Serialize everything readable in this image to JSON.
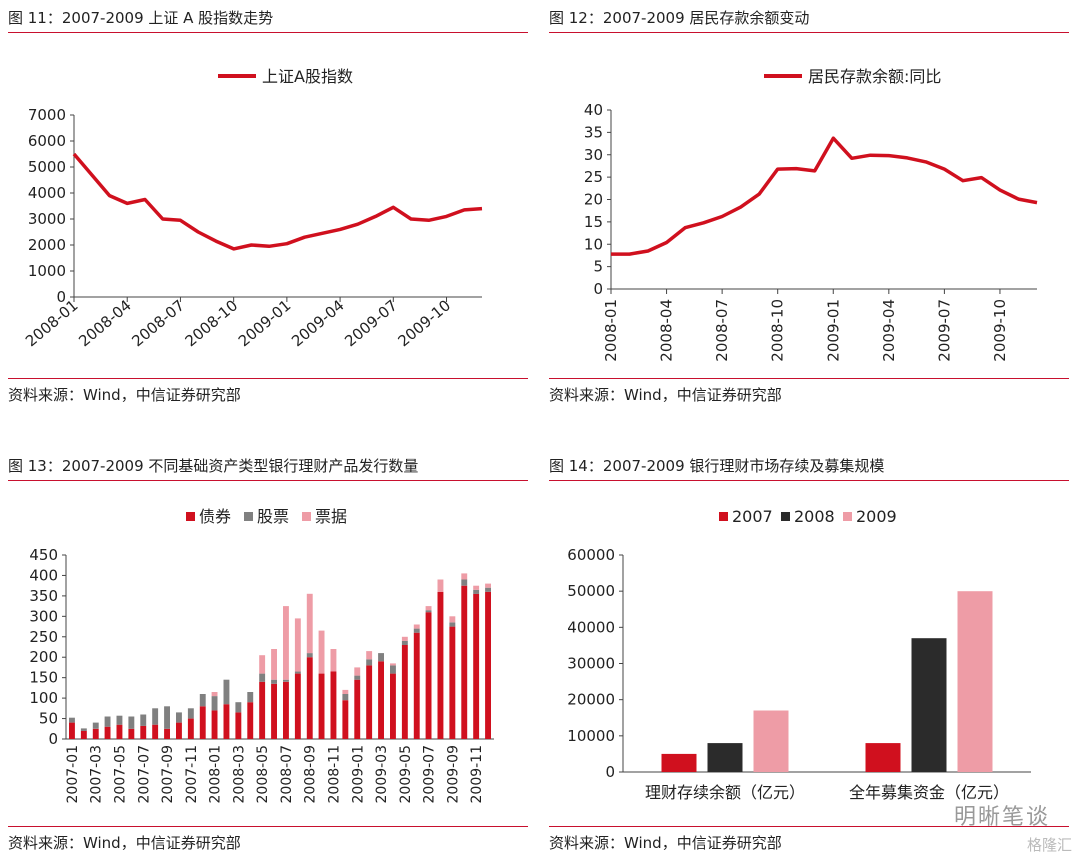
{
  "panels": [
    {
      "title": "图 11：2007-2009 上证 A 股指数走势",
      "source": "资料来源：Wind，中信证券研究部"
    },
    {
      "title": "图 12：2007-2009 居民存款余额变动",
      "source": "资料来源：Wind，中信证券研究部"
    },
    {
      "title": "图 13：2007-2009 不同基础资产类型银行理财产品发行数量",
      "source": "资料来源：Wind，中信证券研究部"
    },
    {
      "title": "图 14：2007-2009 银行理财市场存续及募集规模",
      "source": "资料来源：Wind，中信证券研究部"
    }
  ],
  "watermark": {
    "main": "明晰笔谈",
    "logo": "格隆汇"
  },
  "colors": {
    "red": "#d0101e",
    "dark": "#2b2b2b",
    "pink": "#ee9ca6",
    "gray": "#808080",
    "rule": "#c8102e"
  },
  "chart_data": [
    {
      "type": "line",
      "series": [
        {
          "name": "上证A股指数",
          "x": [
            "2008-01",
            "2008-02",
            "2008-03",
            "2008-04",
            "2008-05",
            "2008-06",
            "2008-07",
            "2008-08",
            "2008-09",
            "2008-10",
            "2008-11",
            "2008-12",
            "2009-01",
            "2009-02",
            "2009-03",
            "2009-04",
            "2009-05",
            "2009-06",
            "2009-07",
            "2009-08",
            "2009-09",
            "2009-10",
            "2009-11",
            "2009-12"
          ],
          "values": [
            5500,
            4700,
            3900,
            3600,
            3750,
            3000,
            2950,
            2500,
            2150,
            1850,
            2000,
            1950,
            2050,
            2300,
            2450,
            2600,
            2800,
            3100,
            3450,
            3000,
            2950,
            3100,
            3350,
            3400
          ]
        }
      ],
      "xticks": [
        "2008-01",
        "2008-04",
        "2008-07",
        "2008-10",
        "2009-01",
        "2009-04",
        "2009-07",
        "2009-10"
      ],
      "ylim": [
        0,
        7000
      ],
      "yticks": [
        0,
        1000,
        2000,
        3000,
        4000,
        5000,
        6000,
        7000
      ],
      "legend": "top"
    },
    {
      "type": "line",
      "series": [
        {
          "name": "居民存款余额:同比",
          "x": [
            "2008-01",
            "2008-02",
            "2008-03",
            "2008-04",
            "2008-05",
            "2008-06",
            "2008-07",
            "2008-08",
            "2008-09",
            "2008-10",
            "2008-11",
            "2008-12",
            "2009-01",
            "2009-02",
            "2009-03",
            "2009-04",
            "2009-05",
            "2009-06",
            "2009-07",
            "2009-08",
            "2009-09",
            "2009-10",
            "2009-11",
            "2009-12"
          ],
          "values": [
            7.8,
            7.8,
            8.5,
            10.4,
            13.7,
            14.8,
            16.2,
            18.3,
            21.2,
            26.8,
            26.9,
            26.4,
            33.7,
            29.2,
            29.9,
            29.8,
            29.3,
            28.4,
            26.8,
            24.2,
            24.9,
            22.1,
            20.1,
            19.3
          ]
        }
      ],
      "xticks": [
        "2008-01",
        "2008-04",
        "2008-07",
        "2008-10",
        "2009-01",
        "2009-04",
        "2009-07",
        "2009-10"
      ],
      "ylim": [
        0,
        40
      ],
      "yticks": [
        0,
        5,
        10,
        15,
        20,
        25,
        30,
        35,
        40
      ],
      "legend": "top"
    },
    {
      "type": "bar",
      "stacked": true,
      "categories": [
        "2007-01",
        "2007-02",
        "2007-03",
        "2007-04",
        "2007-05",
        "2007-06",
        "2007-07",
        "2007-08",
        "2007-09",
        "2007-10",
        "2007-11",
        "2007-12",
        "2008-01",
        "2008-02",
        "2008-03",
        "2008-04",
        "2008-05",
        "2008-06",
        "2008-07",
        "2008-08",
        "2008-09",
        "2008-10",
        "2008-11",
        "2008-12",
        "2009-01",
        "2009-02",
        "2009-03",
        "2009-04",
        "2009-05",
        "2009-06",
        "2009-07",
        "2009-08",
        "2009-09",
        "2009-10",
        "2009-11",
        "2009-12"
      ],
      "xticks": [
        "2007-01",
        "2007-03",
        "2007-05",
        "2007-07",
        "2007-09",
        "2007-11",
        "2008-01",
        "2008-03",
        "2008-05",
        "2008-07",
        "2008-09",
        "2008-11",
        "2009-01",
        "2009-03",
        "2009-05",
        "2009-07",
        "2009-09",
        "2009-11"
      ],
      "series": [
        {
          "name": "债券",
          "values": [
            40,
            20,
            25,
            30,
            35,
            25,
            32,
            35,
            25,
            40,
            50,
            80,
            70,
            85,
            65,
            90,
            140,
            135,
            140,
            160,
            200,
            160,
            165,
            95,
            145,
            180,
            190,
            160,
            230,
            260,
            310,
            360,
            275,
            375,
            355,
            360
          ]
        },
        {
          "name": "股票",
          "values": [
            12,
            6,
            15,
            25,
            22,
            30,
            28,
            40,
            55,
            25,
            25,
            30,
            35,
            60,
            25,
            25,
            20,
            10,
            5,
            5,
            10,
            0,
            0,
            15,
            10,
            15,
            20,
            20,
            10,
            10,
            5,
            0,
            10,
            15,
            10,
            10
          ]
        },
        {
          "name": "票据",
          "values": [
            0,
            0,
            0,
            0,
            0,
            0,
            0,
            0,
            0,
            0,
            0,
            0,
            10,
            0,
            0,
            0,
            45,
            75,
            180,
            130,
            145,
            105,
            55,
            10,
            20,
            20,
            0,
            5,
            10,
            10,
            10,
            30,
            15,
            15,
            10,
            10
          ]
        }
      ],
      "ylim": [
        0,
        450
      ],
      "yticks": [
        0,
        50,
        100,
        150,
        200,
        250,
        300,
        350,
        400,
        450
      ],
      "legend": "top"
    },
    {
      "type": "bar",
      "categories": [
        "理财存续余额（亿元）",
        "全年募集资金（亿元）"
      ],
      "series": [
        {
          "name": "2007",
          "values": [
            5000,
            8000
          ]
        },
        {
          "name": "2008",
          "values": [
            8000,
            37000
          ]
        },
        {
          "name": "2009",
          "values": [
            17000,
            50000
          ]
        }
      ],
      "ylim": [
        0,
        60000
      ],
      "yticks": [
        0,
        10000,
        20000,
        30000,
        40000,
        50000,
        60000
      ],
      "legend": "top"
    }
  ]
}
